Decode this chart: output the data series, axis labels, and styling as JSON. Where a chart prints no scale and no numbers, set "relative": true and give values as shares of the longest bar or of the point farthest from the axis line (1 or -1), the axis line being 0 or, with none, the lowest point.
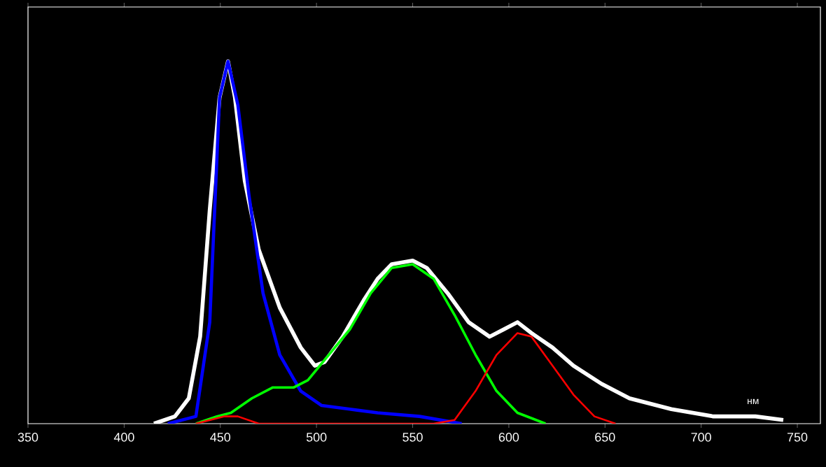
{
  "chart_data": {
    "type": "line",
    "relative": true,
    "xlabel": "нм",
    "xlim": [
      350,
      762
    ],
    "xticks": [
      350,
      400,
      450,
      500,
      550,
      600,
      650,
      700,
      750
    ],
    "tick_labels": "x",
    "series": [
      {
        "color": "#ffffff",
        "x": [
          415.5,
          426.4,
          433.6,
          439.5,
          444.5,
          449.6,
          454.0,
          457.6,
          462.7,
          470.0,
          480.9,
          491.8,
          499.1,
          504.2,
          513.6,
          524.5,
          531.8,
          539.1,
          550.0,
          557.3,
          568.2,
          579.1,
          590.0,
          597.3,
          604.5,
          611.8,
          622.7,
          633.6,
          648.2,
          662.7,
          684.5,
          706.4,
          728.2,
          742.7
        ],
        "values": [
          0,
          0.02,
          0.07,
          0.24,
          0.59,
          0.9,
          1,
          0.9,
          0.67,
          0.48,
          0.32,
          0.21,
          0.16,
          0.17,
          0.24,
          0.34,
          0.4,
          0.44,
          0.45,
          0.43,
          0.36,
          0.28,
          0.24,
          0.26,
          0.28,
          0.25,
          0.21,
          0.16,
          0.11,
          0.07,
          0.04,
          0.02,
          0.02,
          0.01
        ]
      },
      {
        "color": "#0000ff",
        "x": [
          422.7,
          437.3,
          444.5,
          449.6,
          454.0,
          459.1,
          464.9,
          472.2,
          480.9,
          491.8,
          502.7,
          517.3,
          531.8,
          553.6,
          575.5
        ],
        "values": [
          0,
          0.02,
          0.28,
          0.9,
          1,
          0.88,
          0.63,
          0.36,
          0.19,
          0.09,
          0.05,
          0.04,
          0.03,
          0.02,
          0
        ]
      },
      {
        "color": "#00ff00",
        "x": [
          437.3,
          448.2,
          455.5,
          466.4,
          477.3,
          488.2,
          495.5,
          506.4,
          517.3,
          528.2,
          539.1,
          550.0,
          560.9,
          571.8,
          582.7,
          593.6,
          604.5,
          619.1
        ],
        "values": [
          0,
          0.02,
          0.03,
          0.07,
          0.1,
          0.1,
          0.12,
          0.19,
          0.26,
          0.36,
          0.43,
          0.44,
          0.4,
          0.3,
          0.19,
          0.09,
          0.03,
          0
        ]
      },
      {
        "color": "#ff0000",
        "x": [
          437.3,
          451.8,
          459.1,
          470.0,
          495.5,
          560.9,
          571.8,
          582.7,
          593.6,
          604.5,
          611.8,
          622.7,
          633.6,
          644.5,
          655.5
        ],
        "values": [
          0,
          0.02,
          0.02,
          0,
          0,
          0,
          0.01,
          0.09,
          0.19,
          0.25,
          0.24,
          0.16,
          0.08,
          0.02,
          0
        ]
      }
    ]
  }
}
